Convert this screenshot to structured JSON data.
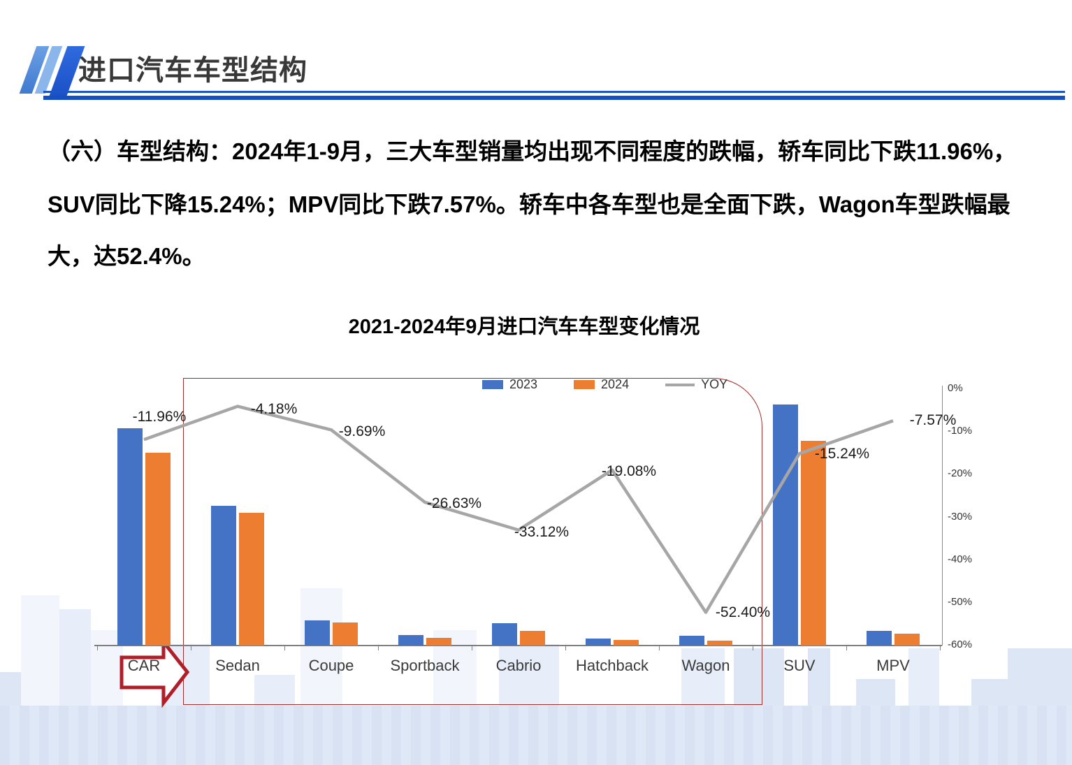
{
  "header": {
    "title": "进口汽车车型结构"
  },
  "paragraph": {
    "lines": [
      "（六）车型结构：2024年1-9月，三大车型销量均出现不同程度的跌幅，轿车同比下跌11.96%，",
      "SUV同比下降15.24%；MPV同比下跌7.57%。轿车中各车型也是全面下跌，Wagon车型跌幅最",
      "大，达52.4%。"
    ]
  },
  "chart": {
    "title": "2021-2024年9月进口汽车车型变化情况",
    "legend": [
      {
        "label": "2023",
        "color": "#4472C4",
        "marker": "swatch"
      },
      {
        "label": "2024",
        "color": "#ED7D31",
        "marker": "swatch"
      },
      {
        "label": "YOY",
        "color": "#A6A6A6",
        "marker": "line"
      }
    ]
  },
  "chart_data": {
    "type": "bar",
    "title": "2021-2024年9月进口汽车车型变化情况",
    "categories": [
      "CAR",
      "Sedan",
      "Coupe",
      "Sportback",
      "Cabrio",
      "Hatchback",
      "Wagon",
      "SUV",
      "MPV"
    ],
    "series": [
      {
        "name": "2023",
        "type": "bar",
        "color": "#4472C4",
        "values_relative": [
          90,
          58,
          10.5,
          4.4,
          9.3,
          2.9,
          4.1,
          100,
          6.1
        ]
      },
      {
        "name": "2024",
        "type": "bar",
        "color": "#ED7D31",
        "values_relative": [
          80,
          55,
          9.6,
          3.2,
          6.1,
          2.3,
          2.0,
          85,
          4.9
        ]
      },
      {
        "name": "YOY",
        "type": "line",
        "color": "#A6A6A6",
        "values_pct": [
          -11.96,
          -4.18,
          -9.69,
          -26.63,
          -33.12,
          -19.08,
          -52.4,
          -15.24,
          -7.57
        ],
        "labels": [
          "-11.96%",
          "-4.18%",
          "-9.69%",
          "-26.63%",
          "-33.12%",
          "-19.08%",
          "-52.40%",
          "-15.24%",
          "-7.57%"
        ],
        "label_offsets": [
          [
            22,
            -32
          ],
          [
            52,
            4
          ],
          [
            44,
            3
          ],
          [
            42,
            2
          ],
          [
            33,
            3
          ],
          [
            24,
            2
          ],
          [
            53,
            0
          ],
          [
            61,
            1
          ],
          [
            57,
            0
          ]
        ]
      }
    ],
    "right_axis": {
      "ticks": [
        "0%",
        "-10%",
        "-20%",
        "-30%",
        "-40%",
        "-50%",
        "-60%"
      ],
      "max": 0,
      "min": -60
    },
    "left_axis": {
      "visible": false
    },
    "legend_position": "top",
    "grid": false,
    "annotations": [
      {
        "shape": "red-rounded-box",
        "covers": [
          "Sedan",
          "Coupe",
          "Sportback",
          "Cabrio",
          "Hatchback",
          "Wagon"
        ]
      },
      {
        "shape": "red-arrow-right",
        "at": "CAR"
      }
    ]
  }
}
